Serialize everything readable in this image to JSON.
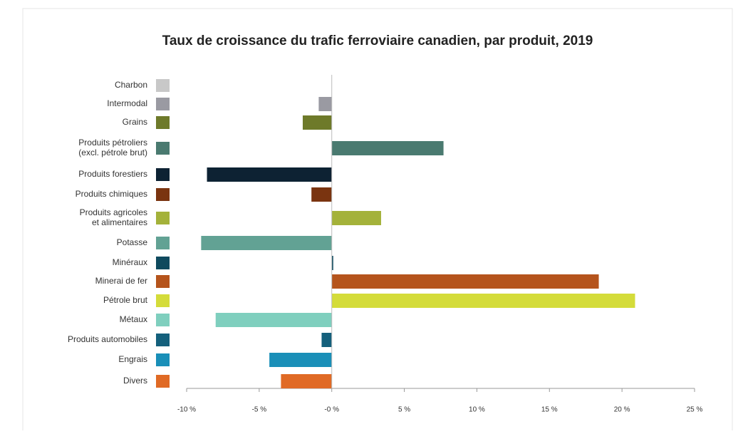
{
  "chart_data": {
    "type": "bar",
    "orientation": "horizontal",
    "title": "Taux de croissance du trafic ferroviaire canadien, par produit, 2019",
    "categories": [
      "Charbon",
      "Intermodal",
      "Grains",
      "Produits pétroliers\n(excl. pétrole brut)",
      "Produits forestiers",
      "Produits chimiques",
      "Produits agricoles\net alimentaires",
      "Potasse",
      "Minéraux",
      "Minerai de fer",
      "Pétrole brut",
      "Métaux",
      "Produits automobiles",
      "Engrais",
      "Divers"
    ],
    "values": [
      0,
      -0.9,
      -2.0,
      7.7,
      -8.6,
      -1.4,
      3.4,
      -9.0,
      0.1,
      18.4,
      20.9,
      -8.0,
      -0.7,
      -4.3,
      -3.5
    ],
    "colors": [
      "#c8c8c8",
      "#9a9aa2",
      "#6e7a2a",
      "#4a7a70",
      "#0d2233",
      "#7a3410",
      "#a4b23a",
      "#62a294",
      "#0f4a5e",
      "#b5541c",
      "#d4dc3a",
      "#7fcfbe",
      "#14607c",
      "#1a8fb8",
      "#e06a25"
    ],
    "xlim": [
      -10,
      25
    ],
    "xticks": [
      {
        "value": -10,
        "label": "-10 %"
      },
      {
        "value": -5,
        "label": "-5 %"
      },
      {
        "value": 0,
        "label": "-0 %"
      },
      {
        "value": 5,
        "label": "5 %"
      },
      {
        "value": 10,
        "label": "10 %"
      },
      {
        "value": 15,
        "label": "15 %"
      },
      {
        "value": 20,
        "label": "20 %"
      },
      {
        "value": 25,
        "label": "25 %"
      }
    ]
  }
}
